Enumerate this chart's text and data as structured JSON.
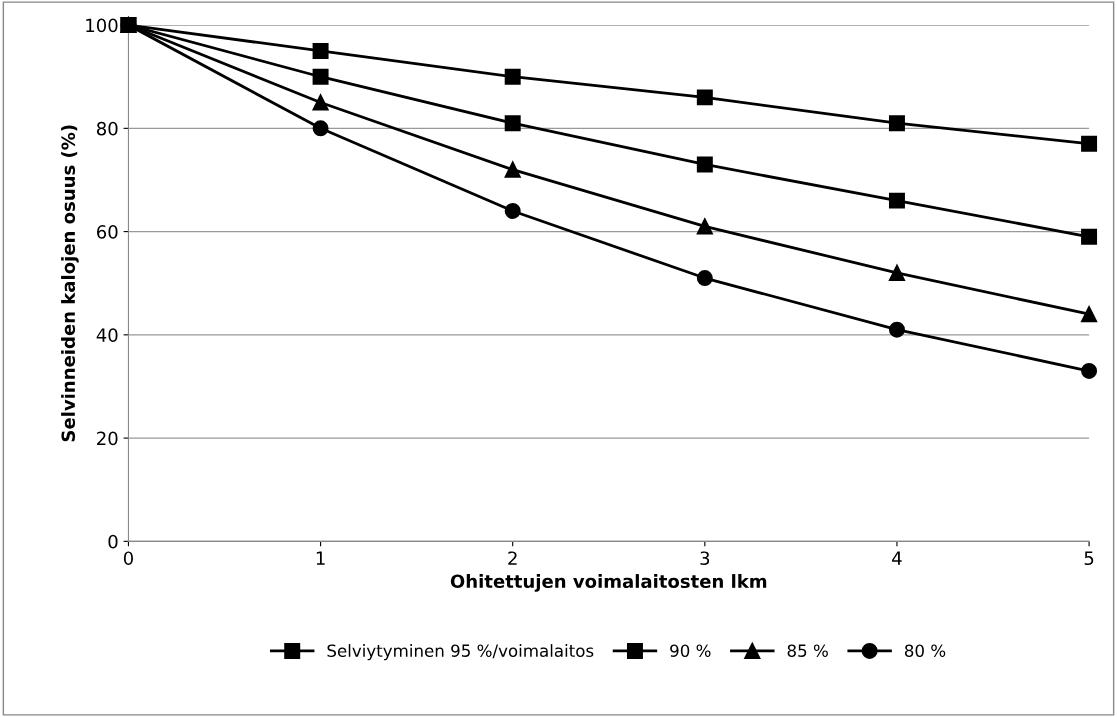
{
  "chart_data": {
    "type": "line",
    "xlabel": "Ohitettujen voimalaitosten lkm",
    "ylabel": "Selvinneiden kalojen osuus (%)",
    "x": [
      0,
      1,
      2,
      3,
      4,
      5
    ],
    "series": [
      {
        "name": "Selviytyminen 95 %/voimalaitos",
        "color": "#000000",
        "marker": "square",
        "values": [
          100,
          95,
          90,
          86,
          81,
          77
        ]
      },
      {
        "name": "90 %",
        "color": "#000000",
        "marker": "square",
        "values": [
          100,
          90,
          81,
          73,
          66,
          59
        ]
      },
      {
        "name": "85 %",
        "color": "#000000",
        "marker": "triangle",
        "values": [
          100,
          85,
          72,
          61,
          52,
          44
        ]
      },
      {
        "name": "80 %",
        "color": "#000000",
        "marker": "circle",
        "values": [
          100,
          80,
          64,
          51,
          41,
          33
        ]
      }
    ],
    "xlim": [
      0,
      5
    ],
    "xticks": [
      0,
      1,
      2,
      3,
      4,
      5
    ],
    "ylim": [
      0,
      100
    ],
    "yticks": [
      0,
      20,
      40,
      60,
      80,
      100
    ],
    "grid": "y",
    "legend": "bottom",
    "line_style": "solid"
  }
}
